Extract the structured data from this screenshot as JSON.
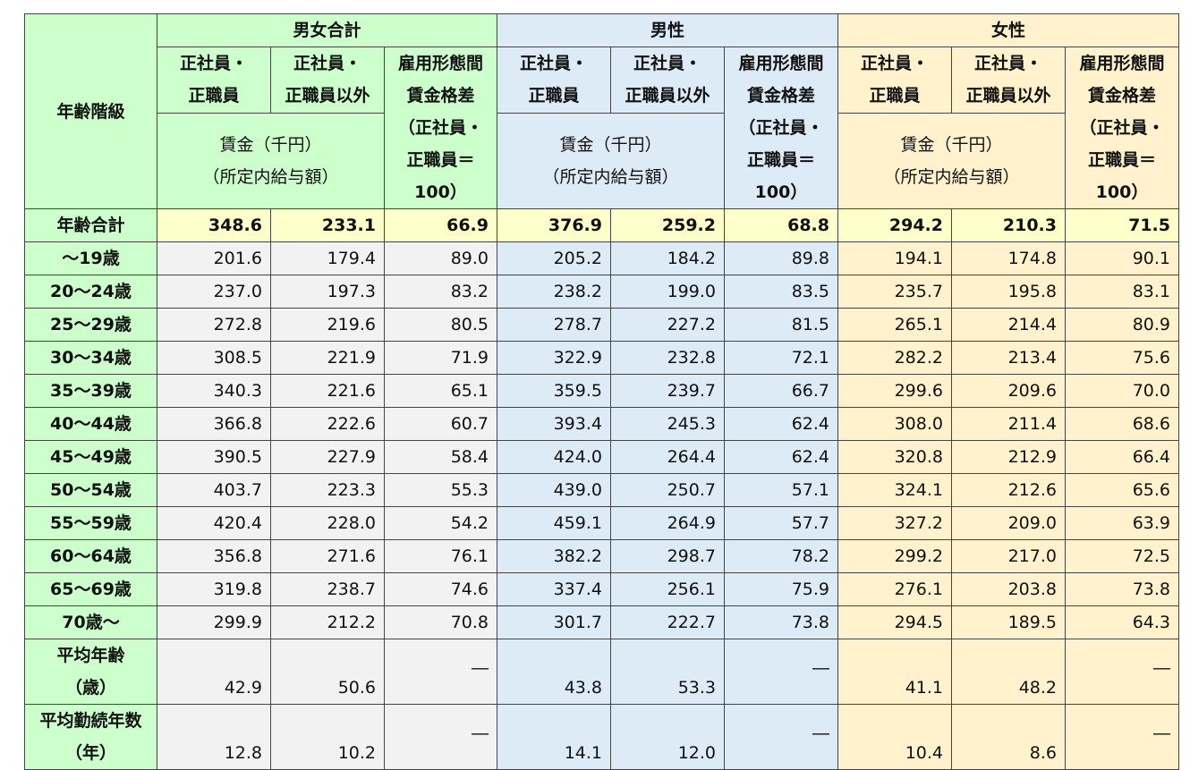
{
  "corner": "年齢階級",
  "groups": [
    {
      "name": "男女合計",
      "columns": [
        [
          "正社員・",
          "正職員"
        ],
        [
          "正社員・",
          "正職員以外"
        ],
        [
          "雇用形態間",
          "賃金格差",
          "（正社員・",
          "正職員＝",
          "100）"
        ]
      ],
      "wage_label": [
        "賃金（千円）",
        "（所定内給与額）"
      ]
    },
    {
      "name": "男性",
      "columns": [
        [
          "正社員・",
          "正職員"
        ],
        [
          "正社員・",
          "正職員以外"
        ],
        [
          "雇用形態間",
          "賃金格差",
          "（正社員・",
          "正職員＝",
          "100）"
        ]
      ],
      "wage_label": [
        "賃金（千円）",
        "（所定内給与額）"
      ]
    },
    {
      "name": "女性",
      "columns": [
        [
          "正社員・",
          "正職員"
        ],
        [
          "正社員・",
          "正職員以外"
        ],
        [
          "雇用形態間",
          "賃金格差",
          "（正社員・",
          "正職員＝",
          "100）"
        ]
      ],
      "wage_label": [
        "賃金（千円）",
        "（所定内給与額）"
      ]
    }
  ],
  "rows": [
    {
      "label": [
        "年齢合計"
      ],
      "values": [
        "348.6",
        "233.1",
        "66.9",
        "376.9",
        "259.2",
        "68.8",
        "294.2",
        "210.3",
        "71.5"
      ]
    },
    {
      "label": [
        "～19歳"
      ],
      "values": [
        "201.6",
        "179.4",
        "89.0",
        "205.2",
        "184.2",
        "89.8",
        "194.1",
        "174.8",
        "90.1"
      ]
    },
    {
      "label": [
        "20～24歳"
      ],
      "values": [
        "237.0",
        "197.3",
        "83.2",
        "238.2",
        "199.0",
        "83.5",
        "235.7",
        "195.8",
        "83.1"
      ]
    },
    {
      "label": [
        "25～29歳"
      ],
      "values": [
        "272.8",
        "219.6",
        "80.5",
        "278.7",
        "227.2",
        "81.5",
        "265.1",
        "214.4",
        "80.9"
      ]
    },
    {
      "label": [
        "30～34歳"
      ],
      "values": [
        "308.5",
        "221.9",
        "71.9",
        "322.9",
        "232.8",
        "72.1",
        "282.2",
        "213.4",
        "75.6"
      ]
    },
    {
      "label": [
        "35～39歳"
      ],
      "values": [
        "340.3",
        "221.6",
        "65.1",
        "359.5",
        "239.7",
        "66.7",
        "299.6",
        "209.6",
        "70.0"
      ]
    },
    {
      "label": [
        "40～44歳"
      ],
      "values": [
        "366.8",
        "222.6",
        "60.7",
        "393.4",
        "245.3",
        "62.4",
        "308.0",
        "211.4",
        "68.6"
      ]
    },
    {
      "label": [
        "45～49歳"
      ],
      "values": [
        "390.5",
        "227.9",
        "58.4",
        "424.0",
        "264.4",
        "62.4",
        "320.8",
        "212.9",
        "66.4"
      ]
    },
    {
      "label": [
        "50～54歳"
      ],
      "values": [
        "403.7",
        "223.3",
        "55.3",
        "439.0",
        "250.7",
        "57.1",
        "324.1",
        "212.6",
        "65.6"
      ]
    },
    {
      "label": [
        "55～59歳"
      ],
      "values": [
        "420.4",
        "228.0",
        "54.2",
        "459.1",
        "264.9",
        "57.7",
        "327.2",
        "209.0",
        "63.9"
      ]
    },
    {
      "label": [
        "60～64歳"
      ],
      "values": [
        "356.8",
        "271.6",
        "76.1",
        "382.2",
        "298.7",
        "78.2",
        "299.2",
        "217.0",
        "72.5"
      ]
    },
    {
      "label": [
        "65～69歳"
      ],
      "values": [
        "319.8",
        "238.7",
        "74.6",
        "337.4",
        "256.1",
        "75.9",
        "276.1",
        "203.8",
        "73.8"
      ]
    },
    {
      "label": [
        "70歳～"
      ],
      "values": [
        "299.9",
        "212.2",
        "70.8",
        "301.7",
        "222.7",
        "73.8",
        "294.5",
        "189.5",
        "64.3"
      ]
    },
    {
      "label": [
        "平均年齢",
        "（歳）"
      ],
      "values": [
        "42.9",
        "50.6",
        "―",
        "43.8",
        "53.3",
        "―",
        "41.1",
        "48.2",
        "―"
      ]
    },
    {
      "label": [
        "平均勤続年数",
        "（年）"
      ],
      "values": [
        "12.8",
        "10.2",
        "―",
        "14.1",
        "12.0",
        "―",
        "10.4",
        "8.6",
        "―"
      ]
    }
  ]
}
